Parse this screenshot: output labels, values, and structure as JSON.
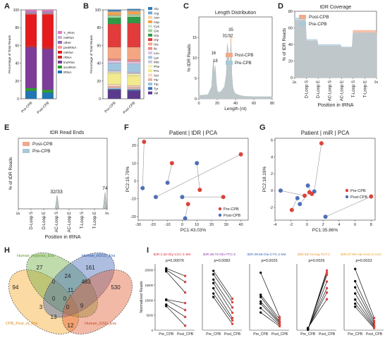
{
  "figure": {
    "panels": [
      "A",
      "B",
      "C",
      "D",
      "E",
      "F",
      "G",
      "H",
      "I"
    ]
  },
  "colors": {
    "post": "#f2a98a",
    "pre": "#a9c9d6",
    "pre_dot": "#4f6fb8",
    "post_dot": "#d9453c"
  },
  "chart_data": [
    {
      "panel": "A",
      "type": "bar",
      "stacked": true,
      "categories": [
        "Pre-CPB",
        "Post-CPB"
      ],
      "ylabel": "Percentage of Total Reads",
      "ylim": [
        0,
        100
      ],
      "yticks": [
        0,
        20,
        40,
        60,
        80,
        100
      ],
      "series": [
        {
          "name": "tRNA",
          "color": "#1f77b4",
          "values": [
            9,
            7
          ]
        },
        {
          "name": "snoRNA",
          "color": "#2ca02c",
          "values": [
            3,
            3
          ]
        },
        {
          "name": "lncRNA",
          "color": "#7d3c98",
          "values": [
            46,
            46
          ]
        },
        {
          "name": "rRNA",
          "color": "#d62728",
          "values": [
            2,
            2
          ]
        },
        {
          "name": "mRNA",
          "color": "#e41a1c",
          "values": [
            35,
            37
          ]
        },
        {
          "name": "pretRNA",
          "color": "#ff9896",
          "values": [
            1,
            1
          ]
        },
        {
          "name": "other",
          "color": "#9467bd",
          "values": [
            1,
            1
          ]
        },
        {
          "name": "miRNA",
          "color": "#c5b0d5",
          "values": [
            1,
            1
          ]
        },
        {
          "name": "Y_RNA",
          "color": "#e377c2",
          "values": [
            2,
            2
          ]
        }
      ]
    },
    {
      "panel": "B",
      "type": "bar",
      "stacked": true,
      "categories": [
        "Pre-CPB",
        "Post-CPB"
      ],
      "ylabel": "Percentage of Total Reads",
      "ylim": [
        0,
        100
      ],
      "yticks": [
        0,
        20,
        40,
        60,
        80,
        100
      ],
      "series": [
        {
          "name": "Val",
          "color": "#5b3a8e",
          "values": [
            10,
            9
          ]
        },
        {
          "name": "Tyr",
          "color": "#3c6fb3",
          "values": [
            1,
            1
          ]
        },
        {
          "name": "Trp",
          "color": "#9bc3e6",
          "values": [
            1,
            1
          ]
        },
        {
          "name": "Thr",
          "color": "#e9b3a6",
          "values": [
            2,
            2
          ]
        },
        {
          "name": "Ser",
          "color": "#f8d6c8",
          "values": [
            2,
            2
          ]
        },
        {
          "name": "Pro",
          "color": "#f2ea8c",
          "values": [
            12,
            11
          ]
        },
        {
          "name": "Phe",
          "color": "#f5f0b0",
          "values": [
            2,
            2
          ]
        },
        {
          "name": "Met",
          "color": "#c8c8d8",
          "values": [
            2,
            2
          ]
        },
        {
          "name": "Lys",
          "color": "#a3c6e0",
          "values": [
            8,
            9
          ]
        },
        {
          "name": "Leu",
          "color": "#d8c4e4",
          "values": [
            3,
            3
          ]
        },
        {
          "name": "Ile",
          "color": "#f08a8a",
          "values": [
            2,
            2
          ]
        },
        {
          "name": "His",
          "color": "#f4a582",
          "values": [
            13,
            14
          ]
        },
        {
          "name": "Gly",
          "color": "#e23b3b",
          "values": [
            26,
            27
          ]
        },
        {
          "name": "Glu",
          "color": "#2e9a45",
          "values": [
            7,
            7
          ]
        },
        {
          "name": "Gln",
          "color": "#9fd59a",
          "values": [
            2,
            2
          ]
        },
        {
          "name": "Cys",
          "color": "#c9e4c5",
          "values": [
            1,
            1
          ]
        },
        {
          "name": "Asp",
          "color": "#f6a04a",
          "values": [
            3,
            3
          ]
        },
        {
          "name": "Asn",
          "color": "#fbd0a0",
          "values": [
            1,
            1
          ]
        },
        {
          "name": "Arg",
          "color": "#6ea6d6",
          "values": [
            1,
            1
          ]
        },
        {
          "name": "Ala",
          "color": "#2c7bb6",
          "values": [
            1,
            1
          ]
        }
      ]
    },
    {
      "panel": "C",
      "type": "area",
      "title": "Length Distribution",
      "xlabel": "Length (nt)",
      "ylabel": "% tDR Reads",
      "xlim": [
        0,
        80
      ],
      "ylim": [
        0,
        20
      ],
      "xticks": [
        0,
        20,
        40,
        60,
        80
      ],
      "yticks": [
        0,
        5,
        10,
        15
      ],
      "legend": "right",
      "annotations": [
        {
          "text": "16",
          "x": 16,
          "y": 10.5
        },
        {
          "text": "18",
          "x": 18,
          "y": 8.6
        },
        {
          "text": "31/32",
          "x": 31.5,
          "y": 14.7
        },
        {
          "text": "35",
          "x": 35,
          "y": 16.2
        }
      ],
      "x": [
        0,
        10,
        14,
        15,
        16,
        17,
        18,
        19,
        20,
        22,
        25,
        28,
        30,
        31,
        32,
        33,
        34,
        35,
        36,
        37,
        38,
        40,
        45,
        50,
        60,
        70,
        80
      ],
      "series": [
        {
          "name": "Post-CPB",
          "values": [
            0.8,
            1,
            3,
            7,
            9.5,
            6,
            8,
            4,
            2,
            1.5,
            2,
            3,
            6,
            13.5,
            12,
            9,
            8,
            15.5,
            6,
            3,
            2,
            1.2,
            0.8,
            0.6,
            0.5,
            0.5,
            0.5
          ]
        },
        {
          "name": "Pre-CPB",
          "values": [
            0.8,
            1,
            3,
            7,
            9.3,
            6,
            7.8,
            4,
            2,
            1.5,
            2,
            3,
            6,
            13.2,
            11.8,
            9,
            8,
            13.5,
            6,
            3,
            2,
            1.2,
            0.8,
            0.6,
            0.5,
            0.5,
            0.5
          ]
        }
      ]
    },
    {
      "panel": "D",
      "type": "area",
      "title": "tDR Coverage",
      "xlabel": "Position in tRNA",
      "ylabel": "% of tDR Reads",
      "ylim": [
        0,
        80
      ],
      "yticks": [
        0,
        20,
        40,
        60,
        80
      ],
      "legend": "top-left",
      "categories": [
        "5'",
        "D-Loop S",
        "D-Loop E",
        "AC-Loop S",
        "AC-Loop E",
        "T-Loop S",
        "T-Loop E",
        "3'"
      ],
      "series": [
        {
          "name": "Post-CPB",
          "values": [
            69,
            44,
            38,
            38,
            36,
            57,
            57,
            55
          ]
        },
        {
          "name": "Pre-CPB",
          "values": [
            72,
            46,
            40,
            40,
            37,
            54,
            54,
            52
          ]
        }
      ]
    },
    {
      "panel": "E",
      "type": "area",
      "title": "tDR Read Ends",
      "xlabel": "Position in tRNA",
      "ylabel": "% of tDR Reads",
      "legend": "top-left",
      "categories": [
        "5'",
        "D-Loop S",
        "D-Loop E",
        "AC-Loop S",
        "AC-Loop E",
        "T-Loop S",
        "T-Loop E",
        "3'"
      ],
      "annotations": [
        {
          "text": "32/33",
          "at": "AC-Loop S"
        },
        {
          "text": "74",
          "at": "3'"
        }
      ],
      "series": [
        {
          "name": "Post-CPB",
          "peaks": [
            {
              "position": "AC-Loop S",
              "value": 32
            },
            {
              "position": "3'",
              "value": 74
            }
          ]
        },
        {
          "name": "Pre-CPB",
          "peaks": [
            {
              "position": "AC-Loop S",
              "value": 32
            },
            {
              "position": "3'",
              "value": 74
            }
          ]
        }
      ]
    },
    {
      "panel": "F",
      "type": "scatter",
      "title": "Patient | tDR | PCA",
      "xlabel": "PC1:43.03%",
      "ylabel": "PC2:15.79%",
      "xlim": [
        -30,
        45
      ],
      "ylim": [
        -22,
        24
      ],
      "xticks": [
        -30,
        -20,
        -10,
        0,
        10,
        20,
        30,
        40
      ],
      "yticks": [
        -20,
        -10,
        0,
        10,
        20
      ],
      "legend": "bottom-right",
      "series": [
        {
          "name": "Pre-CPB",
          "points": [
            [
              -27,
              -4
            ],
            [
              -10,
              -1
            ],
            [
              -18,
              -9
            ],
            [
              2,
              -21
            ],
            [
              10,
              10
            ],
            [
              0,
              -9
            ]
          ]
        },
        {
          "name": "Post-CPB",
          "points": [
            [
              -26,
              22
            ],
            [
              -7,
              10
            ],
            [
              28,
              -9
            ],
            [
              40,
              15
            ],
            [
              4,
              -13
            ],
            [
              12,
              -5
            ]
          ]
        }
      ],
      "pairs": [
        [
          0,
          0
        ],
        [
          1,
          1
        ],
        [
          2,
          3
        ],
        [
          3,
          4
        ],
        [
          4,
          5
        ],
        [
          5,
          2
        ]
      ]
    },
    {
      "panel": "G",
      "type": "scatter",
      "title": "Patient | miR | PCA",
      "xlabel": "PC1:35.86%",
      "ylabel": "PC2:18.19%",
      "xlim": [
        -4,
        8.5
      ],
      "ylim": [
        -3.5,
        6.2
      ],
      "xticks": [
        -4,
        -2,
        0,
        2,
        4,
        6,
        8
      ],
      "yticks": [
        -2,
        0,
        2,
        4,
        6
      ],
      "legend": "right",
      "series": [
        {
          "name": "Pre-CPB",
          "points": [
            [
              -3.3,
              0
            ],
            [
              -1.2,
              -0.9
            ],
            [
              -0.9,
              -1.6
            ],
            [
              0.1,
              0.6
            ],
            [
              0.9,
              -0.1
            ],
            [
              2.3,
              -3.1
            ]
          ]
        },
        {
          "name": "Post-CPB",
          "points": [
            [
              -0.3,
              -0.6
            ],
            [
              -1.9,
              -2.3
            ],
            [
              0.3,
              -0.2
            ],
            [
              0.6,
              -0.4
            ],
            [
              1.8,
              5.6
            ],
            [
              8,
              -0.7
            ]
          ]
        }
      ],
      "pairs": [
        [
          0,
          0
        ],
        [
          1,
          1
        ],
        [
          2,
          2
        ],
        [
          3,
          3
        ],
        [
          4,
          4
        ],
        [
          5,
          5
        ]
      ]
    },
    {
      "panel": "H",
      "type": "venn",
      "sets": [
        {
          "name": "CPB_Post_vs_Pre",
          "color": "#f6a623"
        },
        {
          "name": "Human_Hypoxia_Exs",
          "color": "#6aaa3a"
        },
        {
          "name": "Human_H2O2_Exs",
          "color": "#3b64b5"
        },
        {
          "name": "Human_GSD_Exs",
          "color": "#e0582d"
        }
      ],
      "regions": [
        94,
        27,
        161,
        530,
        0,
        24,
        483,
        0,
        11,
        3,
        0,
        0,
        9,
        13,
        12
      ]
    },
    {
      "panel": "I",
      "type": "line",
      "ylabel": "Normalized Reads",
      "ylim": [
        0,
        25000
      ],
      "yticks": [
        0,
        5000,
        10000,
        15000,
        20000,
        25000
      ],
      "categories": [
        "Pre_CPB",
        "Post_CPB"
      ],
      "subplots": [
        {
          "title": "tDR-1:32-Gly-CCC-1-M4",
          "pvalue": "p=0.00076",
          "title_color": "#d6252a",
          "ymax": 22000,
          "pairs": [
            [
              20500,
              18000
            ],
            [
              20000,
              16000
            ],
            [
              19500,
              12500
            ],
            [
              10200,
              9000
            ],
            [
              10000,
              6700
            ],
            [
              8500,
              4400
            ],
            [
              8000,
              1500
            ]
          ]
        },
        {
          "title": "tDR-36:72-Glu-TTC-2",
          "pvalue": "p=0.0082",
          "title_color": "#8a2ea8",
          "ymax": 1900,
          "pairs": [
            [
              1700,
              900
            ],
            [
              1600,
              800
            ],
            [
              1450,
              650
            ],
            [
              1350,
              500
            ],
            [
              1200,
              350
            ],
            [
              1050,
              280
            ],
            [
              950,
              180
            ]
          ]
        },
        {
          "title": "tDR-39:55-Glu-CTC-1-M4",
          "pvalue": "p=0.0025",
          "title_color": "#2d61b5",
          "ymax": 1500,
          "pairs": [
            [
              1300,
              300
            ],
            [
              800,
              250
            ],
            [
              750,
              200
            ],
            [
              650,
              180
            ],
            [
              600,
              150
            ],
            [
              500,
              120
            ],
            [
              400,
              90
            ]
          ]
        },
        {
          "title": "tDR-38:74-Arg-TCT-1",
          "pvalue": "p=0.0026",
          "title_color": "#f2881a",
          "ymax": 3000,
          "pairs": [
            [
              20,
              2700
            ],
            [
              30,
              2600
            ],
            [
              40,
              2500
            ],
            [
              40,
              2200
            ],
            [
              60,
              1900
            ],
            [
              80,
              1700
            ],
            [
              100,
              1400
            ]
          ]
        },
        {
          "title": "tDR-37:69-Ala-AGC-4-A1G",
          "pvalue": "p=0.0033",
          "title_color": "#e8a01a",
          "ymax": 650,
          "pairs": [
            [
              600,
              120
            ],
            [
              480,
              90
            ],
            [
              420,
              70
            ],
            [
              360,
              50
            ],
            [
              300,
              40
            ],
            [
              260,
              30
            ],
            [
              230,
              20
            ]
          ]
        }
      ]
    }
  ]
}
